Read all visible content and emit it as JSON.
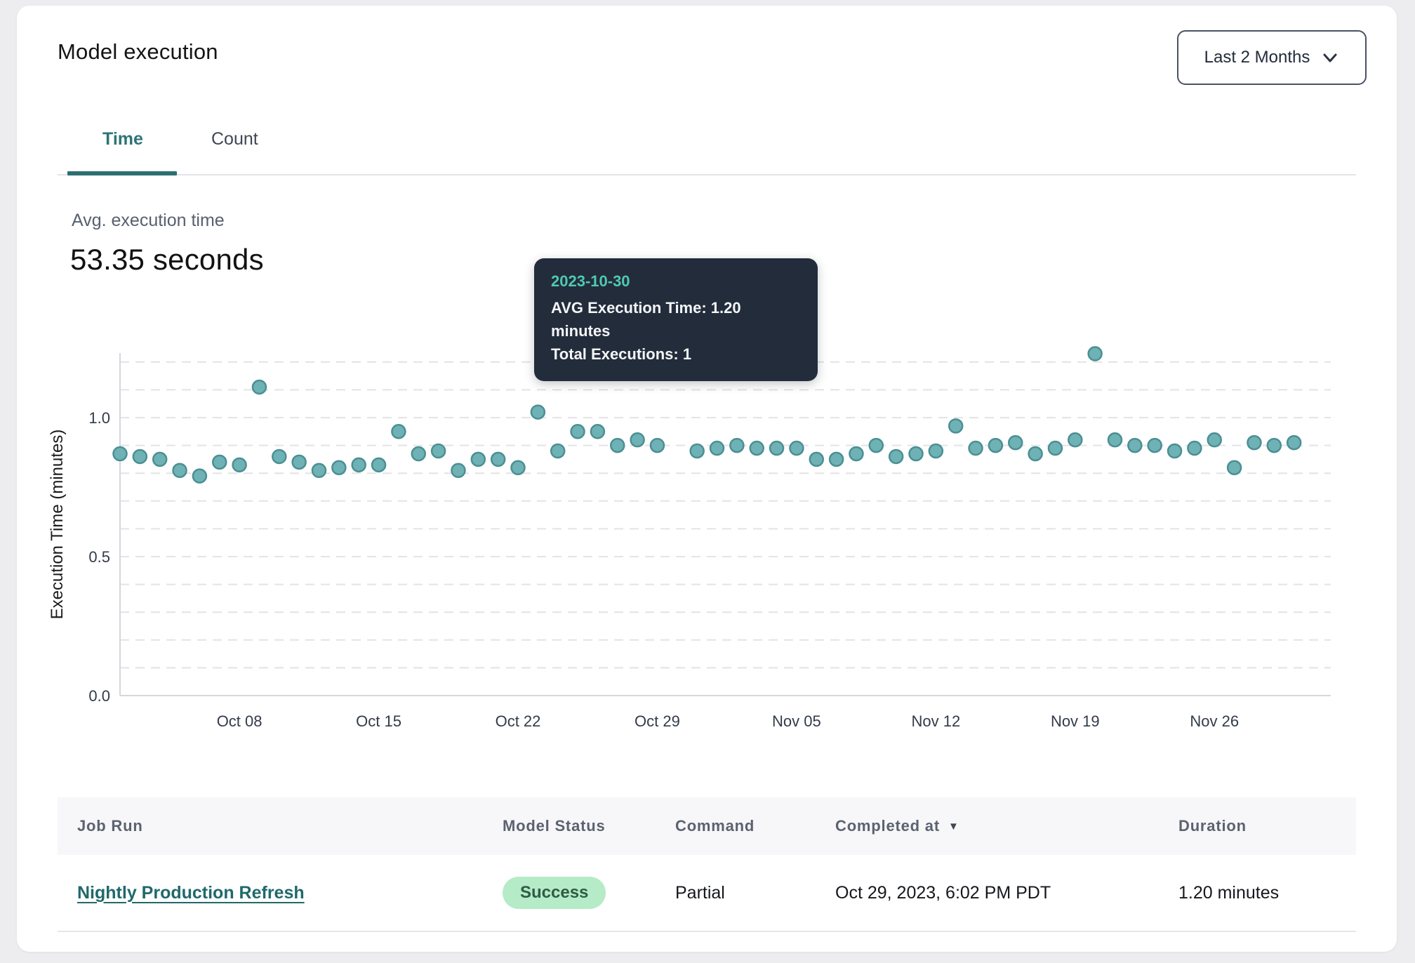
{
  "page": {
    "title": "Model execution"
  },
  "filter": {
    "label": "Last 2 Months"
  },
  "tabs": {
    "time": "Time",
    "count": "Count"
  },
  "summary": {
    "label": "Avg. execution time",
    "value": "53.35 seconds"
  },
  "tooltip": {
    "date": "2023-10-30",
    "line1": "AVG Execution Time: 1.20 minutes",
    "line2": "Total Executions: 1"
  },
  "colors": {
    "accent_teal": "#2c7575",
    "point_fill": "#6fb2b6",
    "point_stroke": "#4b8f93",
    "selected_point_fill": "#4d8e94",
    "selected_point_stroke": "#3a7478",
    "tooltip_bg": "#232c3b",
    "tooltip_date": "#4fc9b4",
    "badge_bg": "#b5ebc6",
    "badge_text": "#2f5c46",
    "grid": "#e3e3e8",
    "axis": "#d6d6dc",
    "tick_text": "#333b49"
  },
  "chart_data": {
    "type": "scatter",
    "title": "",
    "xlabel": "",
    "ylabel": "Execution Time (minutes)",
    "ylim": [
      0,
      1.25
    ],
    "grid": "dashed horizontal every 0.1",
    "y_ticks": [
      {
        "value": 0.0,
        "label": "0.0"
      },
      {
        "value": 0.5,
        "label": "0.5"
      },
      {
        "value": 1.0,
        "label": "1.0"
      }
    ],
    "x_ticks": [
      {
        "index": 6,
        "label": "Oct 08"
      },
      {
        "index": 13,
        "label": "Oct 15"
      },
      {
        "index": 20,
        "label": "Oct 22"
      },
      {
        "index": 27,
        "label": "Oct 29"
      },
      {
        "index": 34,
        "label": "Nov 05"
      },
      {
        "index": 41,
        "label": "Nov 12"
      },
      {
        "index": 48,
        "label": "Nov 19"
      },
      {
        "index": 55,
        "label": "Nov 26"
      }
    ],
    "selected": {
      "index": 28,
      "date": "2023-10-30",
      "value": 1.2
    },
    "points": [
      {
        "date": "2023-10-02",
        "value": 0.87
      },
      {
        "date": "2023-10-03",
        "value": 0.86
      },
      {
        "date": "2023-10-04",
        "value": 0.85
      },
      {
        "date": "2023-10-05",
        "value": 0.81
      },
      {
        "date": "2023-10-06",
        "value": 0.79
      },
      {
        "date": "2023-10-07",
        "value": 0.84
      },
      {
        "date": "2023-10-08",
        "value": 0.83
      },
      {
        "date": "2023-10-09",
        "value": 1.11
      },
      {
        "date": "2023-10-10",
        "value": 0.86
      },
      {
        "date": "2023-10-11",
        "value": 0.84
      },
      {
        "date": "2023-10-12",
        "value": 0.81
      },
      {
        "date": "2023-10-13",
        "value": 0.82
      },
      {
        "date": "2023-10-14",
        "value": 0.83
      },
      {
        "date": "2023-10-15",
        "value": 0.83
      },
      {
        "date": "2023-10-16",
        "value": 0.95
      },
      {
        "date": "2023-10-17",
        "value": 0.87
      },
      {
        "date": "2023-10-18",
        "value": 0.88
      },
      {
        "date": "2023-10-19",
        "value": 0.81
      },
      {
        "date": "2023-10-20",
        "value": 0.85
      },
      {
        "date": "2023-10-21",
        "value": 0.85
      },
      {
        "date": "2023-10-22",
        "value": 0.82
      },
      {
        "date": "2023-10-23",
        "value": 1.02
      },
      {
        "date": "2023-10-24",
        "value": 0.88
      },
      {
        "date": "2023-10-25",
        "value": 0.95
      },
      {
        "date": "2023-10-26",
        "value": 0.95
      },
      {
        "date": "2023-10-27",
        "value": 0.9
      },
      {
        "date": "2023-10-28",
        "value": 0.92
      },
      {
        "date": "2023-10-29",
        "value": 0.9
      },
      {
        "date": "2023-10-30",
        "value": 1.2
      },
      {
        "date": "2023-10-31",
        "value": 0.88
      },
      {
        "date": "2023-11-01",
        "value": 0.89
      },
      {
        "date": "2023-11-02",
        "value": 0.9
      },
      {
        "date": "2023-11-03",
        "value": 0.89
      },
      {
        "date": "2023-11-04",
        "value": 0.89
      },
      {
        "date": "2023-11-05",
        "value": 0.89
      },
      {
        "date": "2023-11-06",
        "value": 0.85
      },
      {
        "date": "2023-11-07",
        "value": 0.85
      },
      {
        "date": "2023-11-08",
        "value": 0.87
      },
      {
        "date": "2023-11-09",
        "value": 0.9
      },
      {
        "date": "2023-11-10",
        "value": 0.86
      },
      {
        "date": "2023-11-11",
        "value": 0.87
      },
      {
        "date": "2023-11-12",
        "value": 0.88
      },
      {
        "date": "2023-11-13",
        "value": 0.97
      },
      {
        "date": "2023-11-14",
        "value": 0.89
      },
      {
        "date": "2023-11-15",
        "value": 0.9
      },
      {
        "date": "2023-11-16",
        "value": 0.91
      },
      {
        "date": "2023-11-17",
        "value": 0.87
      },
      {
        "date": "2023-11-18",
        "value": 0.89
      },
      {
        "date": "2023-11-19",
        "value": 0.92
      },
      {
        "date": "2023-11-20",
        "value": 1.23
      },
      {
        "date": "2023-11-21",
        "value": 0.92
      },
      {
        "date": "2023-11-22",
        "value": 0.9
      },
      {
        "date": "2023-11-23",
        "value": 0.9
      },
      {
        "date": "2023-11-24",
        "value": 0.88
      },
      {
        "date": "2023-11-25",
        "value": 0.89
      },
      {
        "date": "2023-11-26",
        "value": 0.92
      },
      {
        "date": "2023-11-27",
        "value": 0.82
      },
      {
        "date": "2023-11-28",
        "value": 0.91
      },
      {
        "date": "2023-11-29",
        "value": 0.9
      },
      {
        "date": "2023-11-30",
        "value": 0.91
      }
    ]
  },
  "table": {
    "columns": [
      {
        "label": "Job Run"
      },
      {
        "label": "Model Status"
      },
      {
        "label": "Command"
      },
      {
        "label": "Completed at",
        "sorted": "desc"
      },
      {
        "label": "Duration"
      }
    ],
    "rows": [
      {
        "job_run": "Nightly Production Refresh",
        "model_status": "Success",
        "command": "Partial",
        "completed_at": "Oct 29, 2023, 6:02 PM PDT",
        "duration": "1.20 minutes"
      }
    ]
  }
}
